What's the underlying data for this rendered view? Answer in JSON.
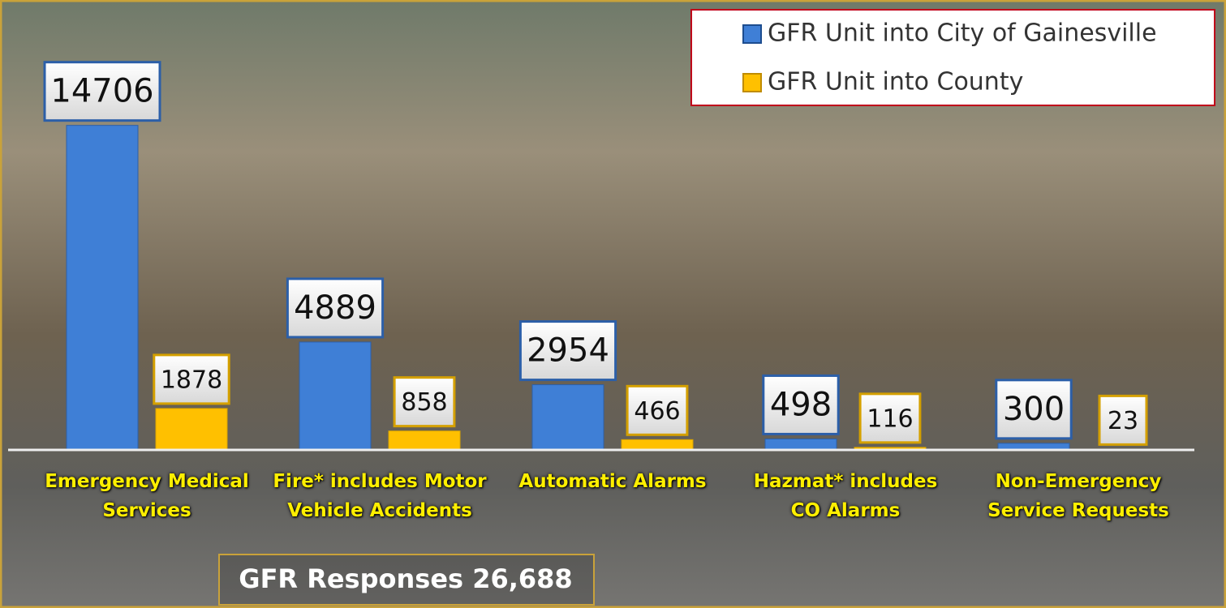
{
  "chart_data": {
    "type": "bar",
    "annotation": "GFR Responses 26,688",
    "categories": [
      "Emergency Medical Services",
      "Fire* includes Motor Vehicle Accidents",
      "Automatic Alarms",
      "Hazmat* includes CO Alarms",
      "Non-Emergency Service Requests"
    ],
    "series": [
      {
        "name": "GFR Unit into City of Gainesville",
        "color": "#3f7fd6",
        "values": [
          14706,
          4889,
          2954,
          498,
          300
        ]
      },
      {
        "name": "GFR Unit into County",
        "color": "#ffc000",
        "values": [
          1878,
          858,
          466,
          116,
          23
        ]
      }
    ],
    "ylim": [
      0,
      18000
    ],
    "legend": "top-right"
  }
}
